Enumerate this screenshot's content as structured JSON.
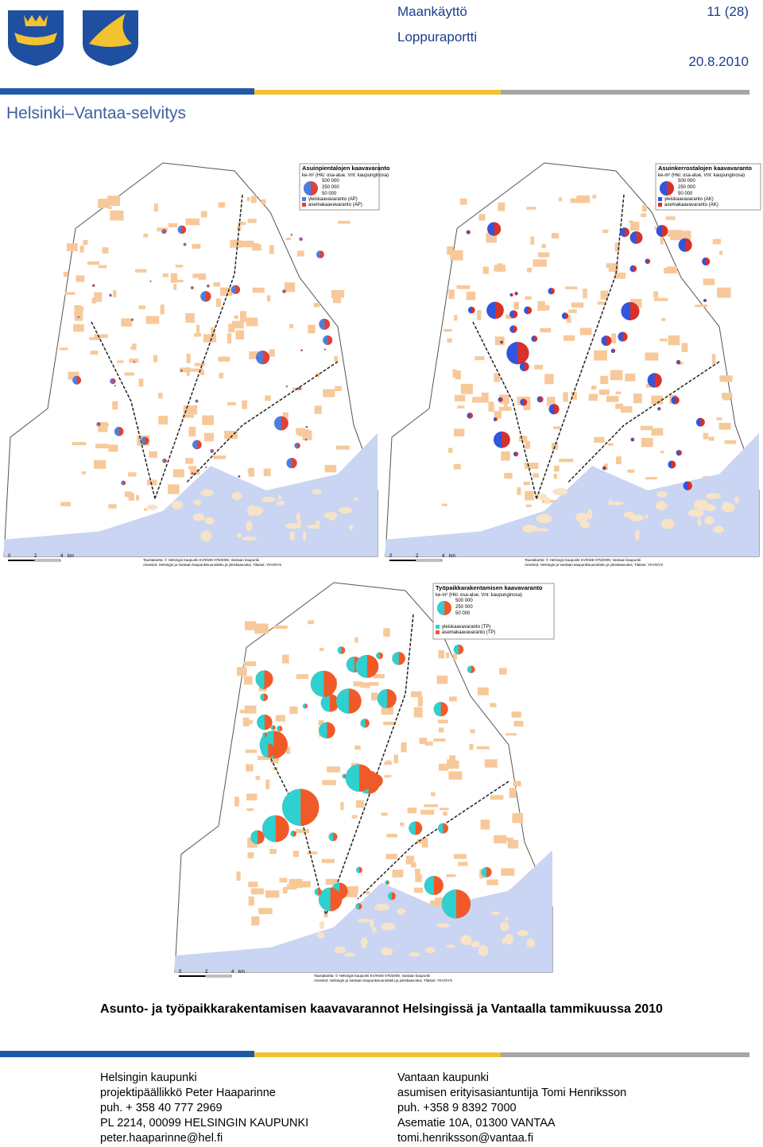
{
  "header": {
    "department": "Maankäyttö",
    "page": "11 (28)",
    "report": "Loppuraportti",
    "date": "20.8.2010",
    "title": "Helsinki–Vantaa-selvitys"
  },
  "maps": [
    {
      "legend_title": "Asuinpientalojen kaavavaranto",
      "legend_unit": "ke-m² (Hki: osa-alue, Vnt: kaupunginosa)",
      "sizes": [
        "500 000",
        "250 000",
        "50 000"
      ],
      "legend_items": [
        "yleiskaavavaranto (AP)",
        "asemakaavavaranto (AP)"
      ],
      "scale": [
        "0",
        "2",
        "4",
        "km"
      ],
      "credits": [
        "Taustakartta: © Helsingin kaupunki KV/KMD 075/2009, Vantaan kaupunki",
        "Aineistot: Helsingin ja Vantaan kaupunkisuunnittelu ja yleiskaavoitus, Tilastot: YKV/SYS"
      ]
    },
    {
      "legend_title": "Asuinkerrostalojen kaavavaranto",
      "legend_unit": "ke-m² (Hki: osa-alue, Vnt: kaupunginosa)",
      "sizes": [
        "500 000",
        "250 000",
        "50 000"
      ],
      "legend_items": [
        "yleiskaavavaranto (AK)",
        "asemakaavavaranto (AK)"
      ],
      "scale": [
        "0",
        "2",
        "4",
        "km"
      ],
      "credits": [
        "Taustakartta: © Helsingin kaupunki KV/KMD 075/2009, Vantaan kaupunki",
        "Aineistot: Helsingin ja Vantaan kaupunkisuunnittelu ja yleiskaavoitus, Tilastot: YKV/SYS"
      ]
    },
    {
      "legend_title": "Työpaikkarakentamisen kaavavaranto",
      "legend_unit": "ke-m² (Hki: osa-alue, Vnt: kaupunginosa)",
      "sizes": [
        "500 000",
        "250 000",
        "50 000"
      ],
      "legend_items": [
        "yleiskaavavaranto (TP)",
        "asemakaavavaranto (TP)"
      ],
      "scale": [
        "0",
        "2",
        "4",
        "km"
      ],
      "credits": [
        "Taustakartta: © Helsingin kaupunki KV/KMD 075/2009, Vantaan kaupunki",
        "Aineistot: Helsingin ja Vantaan kaupunkisuunnittelu ja yleiskaavoitus, Tilastot: YKV/SYS"
      ]
    }
  ],
  "caption": "Asunto- ja työpaikkarakentamisen kaavavarannot Helsingissä ja Vantaalla tammikuussa 2010",
  "contacts": [
    {
      "lines": [
        "Helsingin kaupunki",
        "projektipäällikkö Peter Haaparinne",
        "puh. + 358 40 777 2969",
        "PL 2214, 00099 HELSINGIN KAUPUNKI",
        "peter.haaparinne@hel.fi"
      ]
    },
    {
      "lines": [
        "Vantaan kaupunki",
        "asumisen erityisasiantuntija Tomi Henriksson",
        "puh. +358 9 8392 7000",
        "Asematie 10A, 01300 VANTAA",
        "tomi.henriksson@vantaa.fi"
      ]
    }
  ]
}
